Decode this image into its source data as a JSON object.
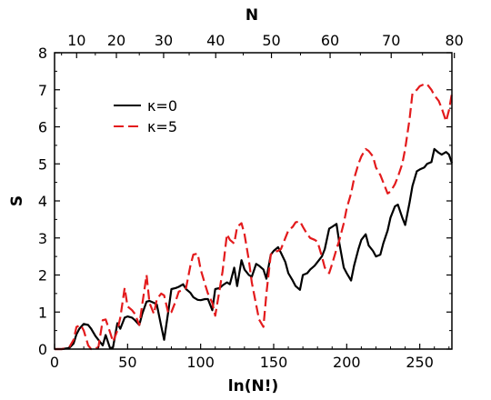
{
  "chart_data": {
    "type": "line",
    "title": "",
    "xlabel": "ln(N!)",
    "ylabel": "S",
    "top_xlabel": "N",
    "xlim": [
      0,
      272
    ],
    "ylim": [
      0,
      8
    ],
    "x_ticks": [
      "0",
      "50",
      "100",
      "150",
      "200",
      "250"
    ],
    "x_tick_values": [
      0,
      50,
      100,
      150,
      200,
      250
    ],
    "y_ticks": [
      "0",
      "1",
      "2",
      "3",
      "4",
      "5",
      "6",
      "7",
      "8"
    ],
    "y_tick_values": [
      0,
      1,
      2,
      3,
      4,
      5,
      6,
      7,
      8
    ],
    "top_ticks": [
      "10",
      "20",
      "30",
      "40",
      "50",
      "60",
      "70",
      "80"
    ],
    "top_tick_values": [
      10,
      20,
      30,
      40,
      50,
      60,
      70,
      80
    ],
    "grid": false,
    "legend_position": "top-left",
    "colors": {
      "k0": "#000000",
      "k5": "#e31a1c"
    },
    "series": [
      {
        "name": "κ=0",
        "style": "solid",
        "x": [
          0,
          5,
          10,
          13,
          15,
          17,
          20,
          23,
          25,
          28,
          30,
          33,
          35,
          38,
          40,
          43,
          45,
          48,
          50,
          53,
          55,
          58,
          60,
          63,
          65,
          68,
          70,
          73,
          75,
          78,
          80,
          83,
          85,
          88,
          90,
          93,
          95,
          98,
          100,
          103,
          105,
          108,
          110,
          113,
          115,
          118,
          120,
          123,
          125,
          128,
          130,
          133,
          135,
          138,
          140,
          143,
          145,
          148,
          150,
          153,
          155,
          158,
          160,
          163,
          165,
          168,
          170,
          173,
          175,
          178,
          180,
          183,
          185,
          188,
          190,
          193,
          195,
          198,
          200,
          203,
          205,
          208,
          210,
          213,
          215,
          218,
          220,
          223,
          225,
          228,
          230,
          233,
          235,
          238,
          240,
          243,
          245,
          248,
          250,
          253,
          255,
          258,
          260,
          263,
          265,
          268,
          270,
          272
        ],
        "y": [
          0,
          0,
          0.03,
          0.15,
          0.4,
          0.55,
          0.68,
          0.65,
          0.55,
          0.35,
          0.25,
          0.1,
          0.38,
          0.02,
          0.05,
          0.7,
          0.55,
          0.85,
          0.88,
          0.85,
          0.78,
          0.65,
          0.95,
          1.28,
          1.3,
          1.25,
          1.2,
          0.62,
          0.25,
          1.05,
          1.62,
          1.65,
          1.68,
          1.75,
          1.62,
          1.52,
          1.4,
          1.33,
          1.32,
          1.35,
          1.35,
          1.05,
          1.62,
          1.65,
          1.72,
          1.8,
          1.75,
          2.2,
          1.7,
          2.4,
          2.15,
          2.0,
          1.95,
          2.3,
          2.25,
          2.15,
          1.9,
          2.55,
          2.65,
          2.75,
          2.6,
          2.35,
          2.05,
          1.85,
          1.7,
          1.6,
          2.0,
          2.05,
          2.15,
          2.25,
          2.35,
          2.5,
          2.7,
          3.25,
          3.3,
          3.38,
          2.85,
          2.2,
          2.05,
          1.85,
          2.25,
          2.7,
          2.95,
          3.1,
          2.8,
          2.65,
          2.5,
          2.55,
          2.85,
          3.2,
          3.55,
          3.85,
          3.9,
          3.55,
          3.35,
          3.95,
          4.4,
          4.8,
          4.85,
          4.9,
          5.0,
          5.05,
          5.4,
          5.3,
          5.25,
          5.32,
          5.25,
          5.02
        ]
      },
      {
        "name": "κ=5",
        "style": "dashed",
        "x": [
          0,
          5,
          10,
          13,
          15,
          18,
          20,
          23,
          25,
          28,
          30,
          33,
          35,
          38,
          40,
          43,
          45,
          48,
          50,
          53,
          55,
          58,
          60,
          63,
          65,
          68,
          70,
          73,
          75,
          78,
          80,
          83,
          85,
          88,
          90,
          93,
          95,
          98,
          100,
          103,
          105,
          108,
          110,
          113,
          115,
          118,
          120,
          123,
          125,
          128,
          130,
          133,
          135,
          138,
          140,
          143,
          145,
          148,
          150,
          153,
          155,
          158,
          160,
          163,
          165,
          168,
          170,
          173,
          175,
          178,
          180,
          183,
          185,
          188,
          190,
          193,
          195,
          198,
          200,
          203,
          205,
          208,
          210,
          213,
          215,
          218,
          220,
          223,
          225,
          228,
          230,
          233,
          235,
          238,
          240,
          243,
          245,
          248,
          250,
          253,
          255,
          258,
          260,
          263,
          265,
          268,
          270,
          272
        ],
        "y": [
          0,
          0,
          0.05,
          0.25,
          0.6,
          0.65,
          0.5,
          0.1,
          0.0,
          0.02,
          0.05,
          0.78,
          0.8,
          0.45,
          0.2,
          0.5,
          0.85,
          1.65,
          1.15,
          1.05,
          0.95,
          0.65,
          1.2,
          2.0,
          1.25,
          0.95,
          1.35,
          1.5,
          1.45,
          0.95,
          1.0,
          1.3,
          1.55,
          1.6,
          1.65,
          2.25,
          2.55,
          2.58,
          2.15,
          1.75,
          1.5,
          1.25,
          0.9,
          1.6,
          2.1,
          3.1,
          2.95,
          2.85,
          3.3,
          3.4,
          3.1,
          2.4,
          1.8,
          1.2,
          0.8,
          0.6,
          1.5,
          2.55,
          2.62,
          2.65,
          2.7,
          3.0,
          3.2,
          3.3,
          3.42,
          3.45,
          3.3,
          3.1,
          3.0,
          2.95,
          2.9,
          2.5,
          2.2,
          2.05,
          2.3,
          2.7,
          2.95,
          3.4,
          3.8,
          4.2,
          4.6,
          5.0,
          5.2,
          5.4,
          5.35,
          5.2,
          4.9,
          4.7,
          4.5,
          4.2,
          4.25,
          4.45,
          4.65,
          5.0,
          5.4,
          6.2,
          6.9,
          7.0,
          7.1,
          7.15,
          7.15,
          7.0,
          6.85,
          6.7,
          6.5,
          6.15,
          6.45,
          6.9
        ]
      }
    ]
  }
}
